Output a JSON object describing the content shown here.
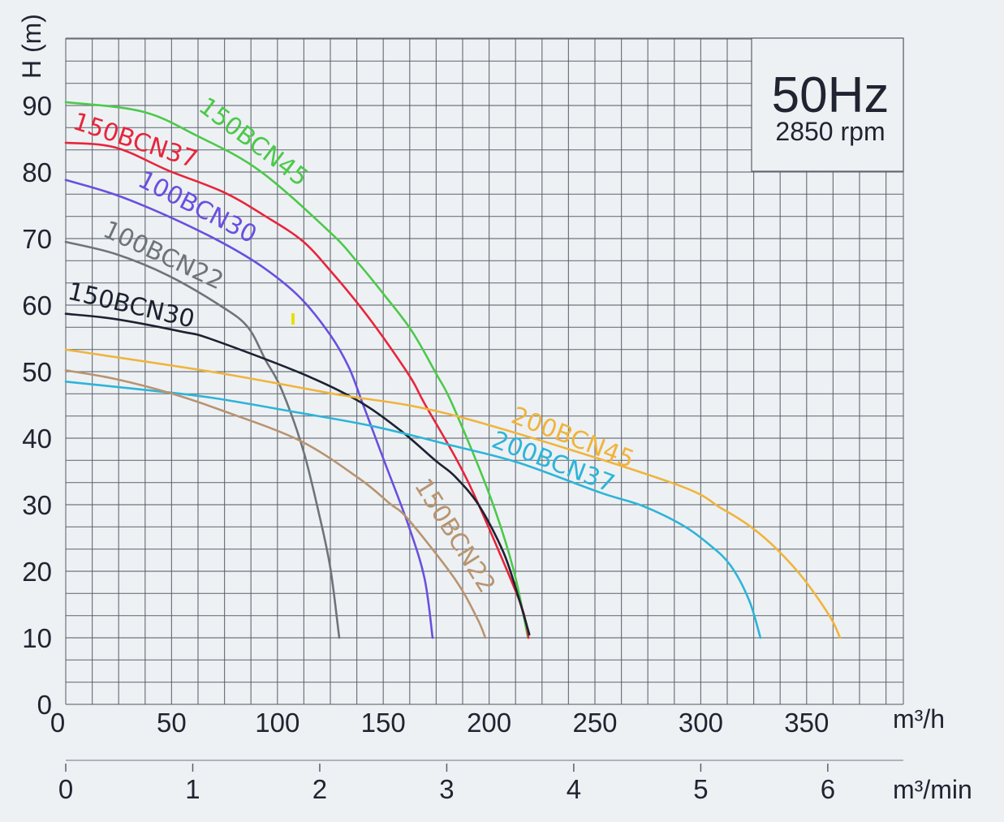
{
  "chart_data": {
    "type": "line",
    "title": "",
    "annotation": {
      "frequency": "50Hz",
      "speed": "2850 rpm"
    },
    "xlabel": "m³/h",
    "ylabel": "H (m)",
    "secondary_xlabel": "m³/min",
    "xlim": [
      0,
      396
    ],
    "ylim": [
      0,
      100
    ],
    "secondary_xlim": [
      0,
      6.6
    ],
    "grid": true,
    "x_ticks": [
      0,
      50,
      100,
      150,
      200,
      250,
      300,
      350
    ],
    "x_tick_labels": [
      "0",
      "50",
      "100",
      "150",
      "200",
      "250",
      "300",
      "350"
    ],
    "y_ticks": [
      0,
      10,
      20,
      30,
      40,
      50,
      60,
      70,
      80,
      90
    ],
    "y_tick_labels": [
      "0",
      "10",
      "20",
      "30",
      "40",
      "50",
      "60",
      "70",
      "80",
      "90"
    ],
    "secondary_x_ticks": [
      0,
      1,
      2,
      3,
      4,
      5,
      6
    ],
    "secondary_x_tick_labels": [
      "0",
      "1",
      "2",
      "3",
      "4",
      "5",
      "6"
    ],
    "legend": "inline-labels",
    "series": [
      {
        "name": "150BCN45",
        "color": "#4cc94a",
        "points": [
          [
            0,
            90.5
          ],
          [
            36,
            89.1
          ],
          [
            61.7,
            85.5
          ],
          [
            91.6,
            80.2
          ],
          [
            125,
            70.9
          ],
          [
            137.7,
            66.5
          ],
          [
            150.3,
            61.6
          ],
          [
            163.3,
            56.2
          ],
          [
            174.8,
            49.8
          ],
          [
            182.9,
            44.9
          ],
          [
            200.2,
            31.5
          ],
          [
            211.3,
            20.5
          ],
          [
            218.4,
            10
          ]
        ]
      },
      {
        "name": "150BCN37",
        "color": "#e8253c",
        "points": [
          [
            0,
            84.4
          ],
          [
            23.4,
            83.7
          ],
          [
            48.7,
            80.2
          ],
          [
            74.4,
            77
          ],
          [
            93.6,
            73.5
          ],
          [
            112,
            69.6
          ],
          [
            126,
            64.8
          ],
          [
            138.8,
            59.9
          ],
          [
            150.3,
            55
          ],
          [
            163.3,
            48.9
          ],
          [
            169.5,
            45.2
          ],
          [
            184.8,
            36.7
          ],
          [
            195.2,
            29.9
          ],
          [
            213.2,
            16.5
          ],
          [
            217.4,
            12.3
          ],
          [
            218.6,
            10
          ]
        ]
      },
      {
        "name": "100BCN30",
        "color": "#6a4fe0",
        "points": [
          [
            0,
            78.8
          ],
          [
            23.4,
            76.6
          ],
          [
            48.7,
            73.3
          ],
          [
            74.4,
            69.3
          ],
          [
            93.6,
            65.6
          ],
          [
            110.8,
            61.1
          ],
          [
            125,
            55.5
          ],
          [
            133.8,
            50.6
          ],
          [
            140.3,
            45.2
          ],
          [
            150.3,
            36.7
          ],
          [
            161.8,
            27
          ],
          [
            169.5,
            18.9
          ],
          [
            173.3,
            10
          ]
        ]
      },
      {
        "name": "100BCN22",
        "color": "#6e757a",
        "points": [
          [
            0,
            69.5
          ],
          [
            23.4,
            67.7
          ],
          [
            48.7,
            64.4
          ],
          [
            73.6,
            59.8
          ],
          [
            86,
            56.7
          ],
          [
            94.3,
            51.8
          ],
          [
            102,
            47.3
          ],
          [
            112,
            38.4
          ],
          [
            119.6,
            28.7
          ],
          [
            125,
            20.5
          ],
          [
            129.2,
            10
          ]
        ]
      },
      {
        "name": "150BCN30",
        "color": "#1c2230",
        "points": [
          [
            0,
            58.7
          ],
          [
            23.4,
            57.9
          ],
          [
            55,
            56
          ],
          [
            68.6,
            54.9
          ],
          [
            110.8,
            49.8
          ],
          [
            137.7,
            45.7
          ],
          [
            158,
            41.2
          ],
          [
            174.8,
            36.6
          ],
          [
            183.7,
            34.3
          ],
          [
            195.2,
            29.9
          ],
          [
            206.7,
            22.9
          ],
          [
            213.5,
            16.5
          ],
          [
            219,
            10.5
          ]
        ]
      },
      {
        "name": "200BCN45",
        "color": "#f0b43c",
        "points": [
          [
            0,
            53.3
          ],
          [
            68.6,
            50
          ],
          [
            126,
            46.7
          ],
          [
            183.7,
            43.4
          ],
          [
            284.5,
            33.5
          ],
          [
            310,
            29.4
          ],
          [
            324,
            26.6
          ],
          [
            336,
            23.3
          ],
          [
            348.5,
            18.9
          ],
          [
            361,
            13.2
          ],
          [
            365.8,
            10
          ]
        ]
      },
      {
        "name": "200BCN37",
        "color": "#2eb4d8",
        "points": [
          [
            0,
            48.5
          ],
          [
            36,
            47.3
          ],
          [
            68.6,
            46.1
          ],
          [
            107,
            44
          ],
          [
            145,
            41.8
          ],
          [
            183.7,
            38.8
          ],
          [
            214,
            36.3
          ],
          [
            252.7,
            31.8
          ],
          [
            271.9,
            29.9
          ],
          [
            291,
            27
          ],
          [
            303.7,
            24.1
          ],
          [
            314,
            20.9
          ],
          [
            322.9,
            15.6
          ],
          [
            328.2,
            10
          ]
        ]
      },
      {
        "name": "150BCN22",
        "color": "#b89470",
        "points": [
          [
            0,
            50.2
          ],
          [
            23.4,
            48.9
          ],
          [
            50.2,
            46.7
          ],
          [
            74.4,
            44.1
          ],
          [
            110.8,
            39.6
          ],
          [
            138.8,
            33.9
          ],
          [
            153,
            30.2
          ],
          [
            161.8,
            27.8
          ],
          [
            183.7,
            18.9
          ],
          [
            194.4,
            12.9
          ],
          [
            198.2,
            10
          ]
        ]
      }
    ]
  },
  "labels": {
    "y_axis_title": "H (m)",
    "x_axis_unit": "m³/h",
    "secondary_axis_unit": "m³/min",
    "info_frequency": "50Hz",
    "info_speed": "2850 rpm",
    "series_150BCN45": "150BCN45",
    "series_150BCN37": "150BCN37",
    "series_100BCN30": "100BCN30",
    "series_100BCN22": "100BCN22",
    "series_150BCN30": "150BCN30",
    "series_200BCN45": "200BCN45",
    "series_200BCN37": "200BCN37",
    "series_150BCN22": "150BCN22"
  },
  "colors": {
    "background": "#edf1f4",
    "grid": "#5a6068",
    "text": "#1f2430",
    "marker_artifact": "#e6e000"
  }
}
